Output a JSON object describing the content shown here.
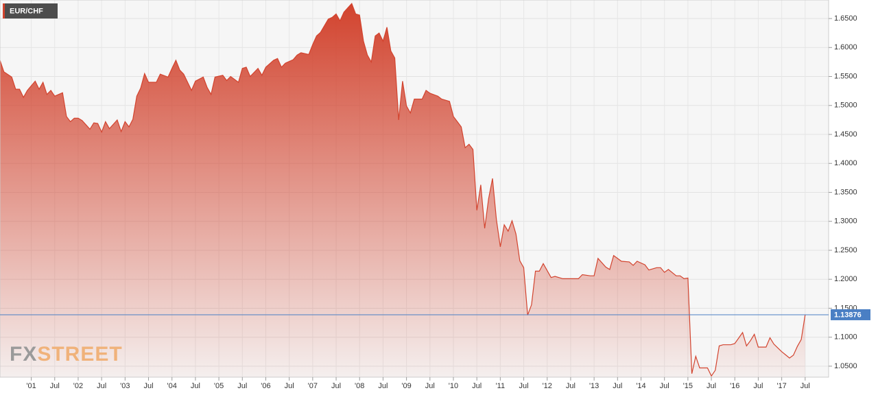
{
  "chart_data": {
    "type": "area",
    "series": [
      {
        "name": "EUR/CHF",
        "color": "#d2432e",
        "x": [
          "2000-05",
          "2000-06",
          "2000-08",
          "2000-09",
          "2000-10",
          "2000-11",
          "2000-12",
          "2001-02",
          "2001-03",
          "2001-04",
          "2001-05",
          "2001-06",
          "2001-07",
          "2001-09",
          "2001-10",
          "2001-11",
          "2001-12",
          "2002-01",
          "2002-02",
          "2002-04",
          "2002-05",
          "2002-06",
          "2002-07",
          "2002-08",
          "2002-09",
          "2002-11",
          "2002-12",
          "2003-01",
          "2003-02",
          "2003-03",
          "2003-04",
          "2003-05",
          "2003-06",
          "2003-07",
          "2003-09",
          "2003-10",
          "2003-12",
          "2004-01",
          "2004-02",
          "2004-03",
          "2004-04",
          "2004-06",
          "2004-07",
          "2004-09",
          "2004-10",
          "2004-11",
          "2004-12",
          "2005-02",
          "2005-03",
          "2005-04",
          "2005-06",
          "2005-07",
          "2005-08",
          "2005-09",
          "2005-11",
          "2005-12",
          "2006-01",
          "2006-03",
          "2006-04",
          "2006-05",
          "2006-06",
          "2006-08",
          "2006-09",
          "2006-10",
          "2006-12",
          "2007-01",
          "2007-02",
          "2007-03",
          "2007-05",
          "2007-06",
          "2007-07",
          "2007-08",
          "2007-09",
          "2007-11",
          "2007-12",
          "2008-01",
          "2008-02",
          "2008-03",
          "2008-04",
          "2008-05",
          "2008-06",
          "2008-07",
          "2008-08",
          "2008-09",
          "2008-10",
          "2008-11",
          "2008-12",
          "2009-01",
          "2009-02",
          "2009-03",
          "2009-05",
          "2009-06",
          "2009-07",
          "2009-09",
          "2009-10",
          "2009-12",
          "2010-01",
          "2010-02",
          "2010-03",
          "2010-04",
          "2010-05",
          "2010-06",
          "2010-07",
          "2010-08",
          "2010-09",
          "2010-10",
          "2010-11",
          "2010-12",
          "2011-01",
          "2011-02",
          "2011-03",
          "2011-04",
          "2011-05",
          "2011-06",
          "2011-07",
          "2011-08",
          "2011-09",
          "2011-10",
          "2011-11",
          "2011-12",
          "2012-02",
          "2012-03",
          "2012-05",
          "2012-09",
          "2012-10",
          "2012-12",
          "2013-01",
          "2013-02",
          "2013-04",
          "2013-05",
          "2013-06",
          "2013-08",
          "2013-10",
          "2013-11",
          "2013-12",
          "2014-02",
          "2014-03",
          "2014-05",
          "2014-06",
          "2014-07",
          "2014-08",
          "2014-10",
          "2014-11",
          "2014-12",
          "2015-01",
          "2015-02",
          "2015-03",
          "2015-04",
          "2015-06",
          "2015-07",
          "2015-08",
          "2015-09",
          "2015-10",
          "2015-12",
          "2016-01",
          "2016-03",
          "2016-04",
          "2016-05",
          "2016-06",
          "2016-07",
          "2016-09",
          "2016-10",
          "2016-11",
          "2017-01",
          "2017-03",
          "2017-04",
          "2017-05",
          "2017-06",
          "2017-07"
        ],
        "values": [
          1.578,
          1.558,
          1.549,
          1.528,
          1.528,
          1.514,
          1.526,
          1.542,
          1.528,
          1.54,
          1.519,
          1.526,
          1.516,
          1.522,
          1.481,
          1.472,
          1.478,
          1.478,
          1.474,
          1.459,
          1.47,
          1.469,
          1.454,
          1.472,
          1.46,
          1.475,
          1.455,
          1.472,
          1.463,
          1.476,
          1.516,
          1.53,
          1.555,
          1.54,
          1.54,
          1.554,
          1.549,
          1.564,
          1.578,
          1.561,
          1.554,
          1.526,
          1.542,
          1.549,
          1.531,
          1.519,
          1.549,
          1.552,
          1.543,
          1.55,
          1.54,
          1.564,
          1.566,
          1.55,
          1.564,
          1.552,
          1.566,
          1.578,
          1.581,
          1.566,
          1.573,
          1.579,
          1.587,
          1.591,
          1.588,
          1.605,
          1.62,
          1.626,
          1.649,
          1.652,
          1.658,
          1.646,
          1.661,
          1.676,
          1.658,
          1.656,
          1.611,
          1.587,
          1.575,
          1.62,
          1.625,
          1.611,
          1.635,
          1.594,
          1.582,
          1.475,
          1.542,
          1.499,
          1.487,
          1.511,
          1.511,
          1.526,
          1.521,
          1.516,
          1.511,
          1.507,
          1.481,
          1.472,
          1.463,
          1.427,
          1.433,
          1.424,
          1.319,
          1.363,
          1.288,
          1.339,
          1.374,
          1.303,
          1.256,
          1.294,
          1.283,
          1.301,
          1.278,
          1.232,
          1.22,
          1.138,
          1.156,
          1.214,
          1.214,
          1.227,
          1.203,
          1.205,
          1.201,
          1.201,
          1.208,
          1.206,
          1.206,
          1.236,
          1.221,
          1.217,
          1.241,
          1.231,
          1.23,
          1.224,
          1.231,
          1.225,
          1.216,
          1.22,
          1.22,
          1.212,
          1.217,
          1.206,
          1.206,
          1.201,
          1.202,
          1.037,
          1.067,
          1.047,
          1.047,
          1.033,
          1.043,
          1.085,
          1.087,
          1.087,
          1.089,
          1.108,
          1.085,
          1.094,
          1.105,
          1.083,
          1.083,
          1.099,
          1.088,
          1.075,
          1.064,
          1.069,
          1.084,
          1.096,
          1.13876
        ]
      }
    ],
    "current_price": 1.13876,
    "watermark": [
      "FX",
      "STREET"
    ],
    "xlim": [
      "2000-05",
      "2018-01"
    ],
    "xticks": [
      {
        "value": "2001-01",
        "label": "'01"
      },
      {
        "value": "2001-07",
        "label": "Jul"
      },
      {
        "value": "2002-01",
        "label": "'02"
      },
      {
        "value": "2002-07",
        "label": "Jul"
      },
      {
        "value": "2003-01",
        "label": "'03"
      },
      {
        "value": "2003-07",
        "label": "Jul"
      },
      {
        "value": "2004-01",
        "label": "'04"
      },
      {
        "value": "2004-07",
        "label": "Jul"
      },
      {
        "value": "2005-01",
        "label": "'05"
      },
      {
        "value": "2005-07",
        "label": "Jul"
      },
      {
        "value": "2006-01",
        "label": "'06"
      },
      {
        "value": "2006-07",
        "label": "Jul"
      },
      {
        "value": "2007-01",
        "label": "'07"
      },
      {
        "value": "2007-07",
        "label": "Jul"
      },
      {
        "value": "2008-01",
        "label": "'08"
      },
      {
        "value": "2008-07",
        "label": "Jul"
      },
      {
        "value": "2009-01",
        "label": "'09"
      },
      {
        "value": "2009-07",
        "label": "Jul"
      },
      {
        "value": "2010-01",
        "label": "'10"
      },
      {
        "value": "2010-07",
        "label": "Jul"
      },
      {
        "value": "2011-01",
        "label": "'11"
      },
      {
        "value": "2011-07",
        "label": "Jul"
      },
      {
        "value": "2012-01",
        "label": "'12"
      },
      {
        "value": "2012-07",
        "label": "Jul"
      },
      {
        "value": "2013-01",
        "label": "'13"
      },
      {
        "value": "2013-07",
        "label": "Jul"
      },
      {
        "value": "2014-01",
        "label": "'14"
      },
      {
        "value": "2014-07",
        "label": "Jul"
      },
      {
        "value": "2015-01",
        "label": "'15"
      },
      {
        "value": "2015-07",
        "label": "Jul"
      },
      {
        "value": "2016-01",
        "label": "'16"
      },
      {
        "value": "2016-07",
        "label": "Jul"
      },
      {
        "value": "2017-01",
        "label": "'17"
      },
      {
        "value": "2017-07",
        "label": "Jul"
      }
    ],
    "ylim": [
      1.031,
      1.682
    ],
    "yticks": [
      {
        "value": 1.05,
        "label": "1.0500"
      },
      {
        "value": 1.1,
        "label": "1.1000"
      },
      {
        "value": 1.15,
        "label": "1.1500"
      },
      {
        "value": 1.2,
        "label": "1.2000"
      },
      {
        "value": 1.25,
        "label": "1.2500"
      },
      {
        "value": 1.3,
        "label": "1.3000"
      },
      {
        "value": 1.35,
        "label": "1.3500"
      },
      {
        "value": 1.4,
        "label": "1.4000"
      },
      {
        "value": 1.45,
        "label": "1.4500"
      },
      {
        "value": 1.5,
        "label": "1.5000"
      },
      {
        "value": 1.55,
        "label": "1.5500"
      },
      {
        "value": 1.6,
        "label": "1.6000"
      },
      {
        "value": 1.65,
        "label": "1.6500"
      }
    ],
    "grid": true,
    "current_color": "#4a7fc4"
  }
}
